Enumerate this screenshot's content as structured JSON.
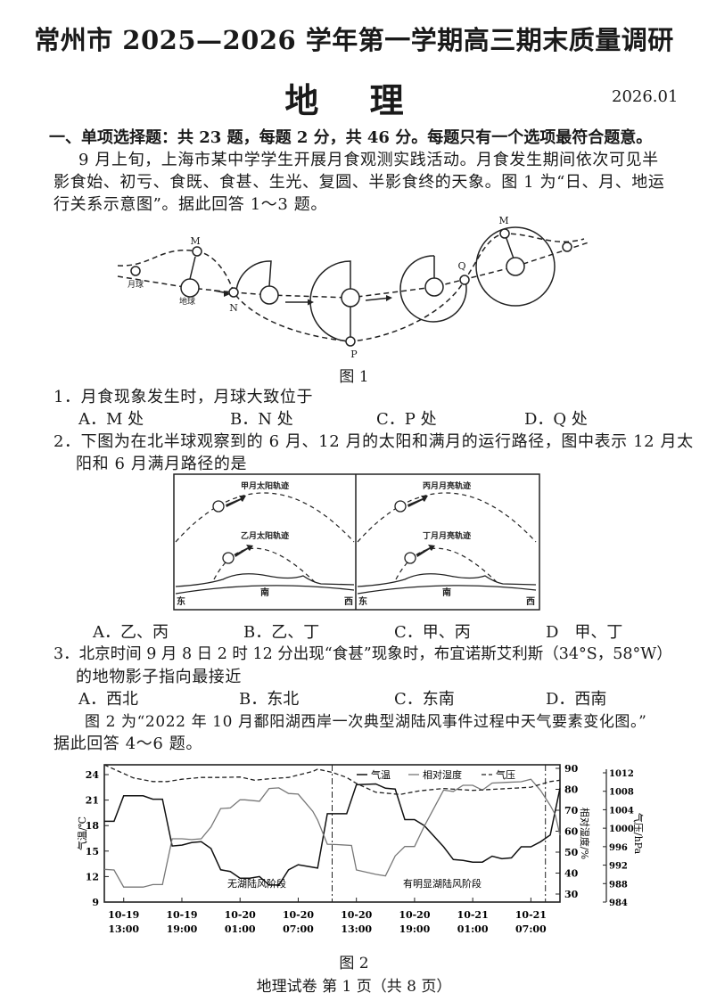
{
  "header": {
    "title": "常州市 2025—2026 学年第一学期高三期末质量调研",
    "subject": "地 理",
    "date": "2026.01"
  },
  "section1": {
    "heading": "一、单项选择题：共 23 题，每题 2 分，共 46 分。每题只有一个选项最符合题意。",
    "intro": [
      "9 月上旬，上海市某中学学生开展月食观测实践活动。月食发生期间依次可见半",
      "影食始、初亏、食既、食甚、生光、复圆、半影食终的天象。图 1 为“日、月、地运",
      "行关系示意图”。据此回答 1～3 题。"
    ]
  },
  "figure1": {
    "caption": "图 1",
    "labels": {
      "moon": "月球",
      "earth": "地球",
      "M": "M",
      "N": "N",
      "P": "P",
      "Q": "Q"
    }
  },
  "questions": [
    {
      "stem": [
        "1．月食现象发生时，月球大致位于"
      ],
      "options": [
        "A．M 处",
        "B．N 处",
        "C．P 处",
        "D．Q 处"
      ]
    },
    {
      "stem": [
        "2．下图为在北半球观察到的 6 月、12 月的太阳和满月的运行路径，图中表示 12 月太",
        "阳和 6 月满月路径的是"
      ],
      "options": [
        "A．乙、丙",
        "B．乙、丁",
        "C．甲、丙",
        "D　甲、丁"
      ]
    },
    {
      "stem": [
        "3．北京时间 9 月 8 日 2 时 12 分出现“食甚”现象时，布宜诺斯艾利斯（34°S，58°W）",
        "的地物影子指向最接近"
      ],
      "options": [
        "A．西北",
        "B．东北",
        "C．东南",
        "D．西南"
      ]
    }
  ],
  "figureQ2": {
    "left_panel": {
      "upper_label": "甲月太阳轨迹",
      "lower_label": "乙月太阳轨迹",
      "east": "东",
      "south": "南",
      "west": "西"
    },
    "right_panel": {
      "upper_label": "丙月月亮轨迹",
      "lower_label": "丁月月亮轨迹",
      "east": "东",
      "south": "南",
      "west": "西"
    }
  },
  "intro2": [
    "图 2 为“2022 年 10 月鄱阳湖西岸一次典型湖陆风事件过程中天气要素变化图。”",
    "据此回答 4～6 题。"
  ],
  "chart_data": {
    "type": "line",
    "caption": "图 2",
    "legend": [
      "气温",
      "相对湿度",
      "气压"
    ],
    "legend_placement": "top-right",
    "x_ticks": [
      [
        "10-19",
        "13:00"
      ],
      [
        "10-19",
        "19:00"
      ],
      [
        "10-20",
        "01:00"
      ],
      [
        "10-20",
        "07:00"
      ],
      [
        "10-20",
        "13:00"
      ],
      [
        "10-20",
        "19:00"
      ],
      [
        "10-21",
        "01:00"
      ],
      [
        "10-21",
        "07:00"
      ]
    ],
    "xlim": [
      "10-19 11:00",
      "10-21 10:00"
    ],
    "phase_boundaries": [
      "10-20 10:30",
      "10-21 08:30"
    ],
    "phases": [
      "无湖陆风阶段",
      "有明显湖陆风阶段"
    ],
    "axes": {
      "temperature": {
        "label": "气温/℃",
        "ticks": [
          9,
          12,
          15,
          18,
          21,
          24
        ],
        "ylim": [
          9,
          24.2
        ]
      },
      "humidity": {
        "label": "相对湿度/%",
        "ticks": [
          30,
          40,
          50,
          60,
          70,
          80,
          90
        ],
        "ylim": [
          26,
          90
        ]
      },
      "pressure": {
        "label": "气压/hPa",
        "ticks": [
          984,
          988,
          992,
          996,
          1000,
          1004,
          1008,
          1012
        ],
        "ylim": [
          984,
          1012
        ]
      }
    },
    "series": [
      {
        "name": "气温",
        "axis": "temperature",
        "style": "solid-dark",
        "points": [
          [
            "10-19 11:00",
            18.5
          ],
          [
            "10-19 12:00",
            18.5
          ],
          [
            "10-19 13:00",
            21.5
          ],
          [
            "10-19 15:00",
            21.5
          ],
          [
            "10-19 16:00",
            21.1
          ],
          [
            "10-19 17:00",
            21.1
          ],
          [
            "10-19 18:00",
            15.6
          ],
          [
            "10-19 19:00",
            15.7
          ],
          [
            "10-19 20:00",
            16.0
          ],
          [
            "10-19 21:00",
            16.1
          ],
          [
            "10-19 22:00",
            15.3
          ],
          [
            "10-19 23:00",
            12.8
          ],
          [
            "10-20 00:00",
            12.6
          ],
          [
            "10-20 01:00",
            11.8
          ],
          [
            "10-20 02:00",
            11.8
          ],
          [
            "10-20 03:00",
            12.0
          ],
          [
            "10-20 04:00",
            11.0
          ],
          [
            "10-20 05:00",
            11.0
          ],
          [
            "10-20 06:00",
            12.8
          ],
          [
            "10-20 07:00",
            13.4
          ],
          [
            "10-20 08:00",
            13.2
          ],
          [
            "10-20 09:00",
            13.0
          ],
          [
            "10-20 10:00",
            19.4
          ],
          [
            "10-20 12:00",
            19.4
          ],
          [
            "10-20 13:00",
            22.8
          ],
          [
            "10-20 15:00",
            22.9
          ],
          [
            "10-20 16:00",
            22.4
          ],
          [
            "10-20 17:00",
            22.3
          ],
          [
            "10-20 18:00",
            18.7
          ],
          [
            "10-20 19:00",
            18.7
          ],
          [
            "10-20 20:00",
            18.0
          ],
          [
            "10-20 22:00",
            15.5
          ],
          [
            "10-20 23:00",
            14.0
          ],
          [
            "10-21 00:00",
            13.9
          ],
          [
            "10-21 01:00",
            13.7
          ],
          [
            "10-21 02:00",
            13.7
          ],
          [
            "10-21 03:00",
            14.4
          ],
          [
            "10-21 04:00",
            14.1
          ],
          [
            "10-21 05:00",
            14.2
          ],
          [
            "10-21 06:00",
            15.5
          ],
          [
            "10-21 07:00",
            15.5
          ],
          [
            "10-21 08:00",
            16.1
          ],
          [
            "10-21 09:00",
            16.9
          ],
          [
            "10-21 10:00",
            22.4
          ]
        ]
      },
      {
        "name": "相对湿度",
        "axis": "humidity",
        "style": "solid-grey",
        "points": [
          [
            "10-19 11:00",
            41.8
          ],
          [
            "10-19 12:00",
            41.5
          ],
          [
            "10-19 13:00",
            33.3
          ],
          [
            "10-19 15:00",
            33.3
          ],
          [
            "10-19 16:00",
            34.5
          ],
          [
            "10-19 17:00",
            34.5
          ],
          [
            "10-19 18:00",
            56.4
          ],
          [
            "10-19 19:00",
            56.4
          ],
          [
            "10-19 20:00",
            56.0
          ],
          [
            "10-19 21:00",
            56.4
          ],
          [
            "10-19 22:00",
            62.0
          ],
          [
            "10-19 23:00",
            70.8
          ],
          [
            "10-20 00:00",
            71.1
          ],
          [
            "10-20 01:00",
            75.0
          ],
          [
            "10-20 01:30",
            75.0
          ],
          [
            "10-20 03:00",
            74.3
          ],
          [
            "10-20 04:00",
            80.4
          ],
          [
            "10-20 05:00",
            80.7
          ],
          [
            "10-20 06:00",
            78.0
          ],
          [
            "10-20 07:00",
            77.7
          ],
          [
            "10-20 08:30",
            69.5
          ],
          [
            "10-20 09:00",
            65.3
          ],
          [
            "10-20 10:00",
            53.8
          ],
          [
            "10-20 11:00",
            53.6
          ],
          [
            "10-20 12:30",
            53.2
          ],
          [
            "10-20 13:00",
            41.5
          ],
          [
            "10-20 15:00",
            39.4
          ],
          [
            "10-20 16:00",
            38.7
          ],
          [
            "10-20 17:00",
            48.2
          ],
          [
            "10-20 18:00",
            52.7
          ],
          [
            "10-20 19:00",
            52.7
          ],
          [
            "10-20 20:00",
            62.4
          ],
          [
            "10-20 22:00",
            79.6
          ],
          [
            "10-20 23:00",
            79.0
          ],
          [
            "10-21 00:00",
            81.9
          ],
          [
            "10-21 01:00",
            81.9
          ],
          [
            "10-21 02:00",
            79.6
          ],
          [
            "10-21 03:00",
            83.0
          ],
          [
            "10-21 04:30",
            83.3
          ],
          [
            "10-21 06:00",
            83.6
          ],
          [
            "10-21 07:00",
            84.8
          ],
          [
            "10-21 08:00",
            79.4
          ],
          [
            "10-21 09:00",
            72.3
          ],
          [
            "10-21 09:30",
            68.0
          ],
          [
            "10-21 10:00",
            58.1
          ]
        ]
      },
      {
        "name": "气压",
        "axis": "pressure",
        "style": "dashed",
        "points": [
          [
            "10-19 11:00",
            1013.8
          ],
          [
            "10-19 12:30",
            1012.3
          ],
          [
            "10-19 14:00",
            1010.9
          ],
          [
            "10-19 16:00",
            1010.1
          ],
          [
            "10-19 17:30",
            1010.1
          ],
          [
            "10-19 19:00",
            1010.6
          ],
          [
            "10-19 21:00",
            1011.0
          ],
          [
            "10-19 23:00",
            1011.0
          ],
          [
            "10-20 01:00",
            1011.1
          ],
          [
            "10-20 02:30",
            1010.4
          ],
          [
            "10-20 04:00",
            1010.7
          ],
          [
            "10-20 06:00",
            1011.0
          ],
          [
            "10-20 08:30",
            1012.3
          ],
          [
            "10-20 09:00",
            1012.8
          ],
          [
            "10-20 10:30",
            1012.1
          ],
          [
            "10-20 12:00",
            1011.0
          ],
          [
            "10-20 13:00",
            1009.7
          ],
          [
            "10-20 15:00",
            1007.8
          ],
          [
            "10-20 17:30",
            1007.3
          ],
          [
            "10-20 19:30",
            1008.1
          ],
          [
            "10-20 22:00",
            1008.6
          ],
          [
            "10-21 01:00",
            1008.2
          ],
          [
            "10-21 03:00",
            1008.4
          ],
          [
            "10-21 05:30",
            1008.7
          ],
          [
            "10-21 07:00",
            1008.9
          ],
          [
            "10-21 09:00",
            1010.1
          ],
          [
            "10-21 10:00",
            1010.4
          ]
        ]
      }
    ]
  },
  "footer": {
    "page": "地理试卷 第 1 页（共 8 页）"
  }
}
